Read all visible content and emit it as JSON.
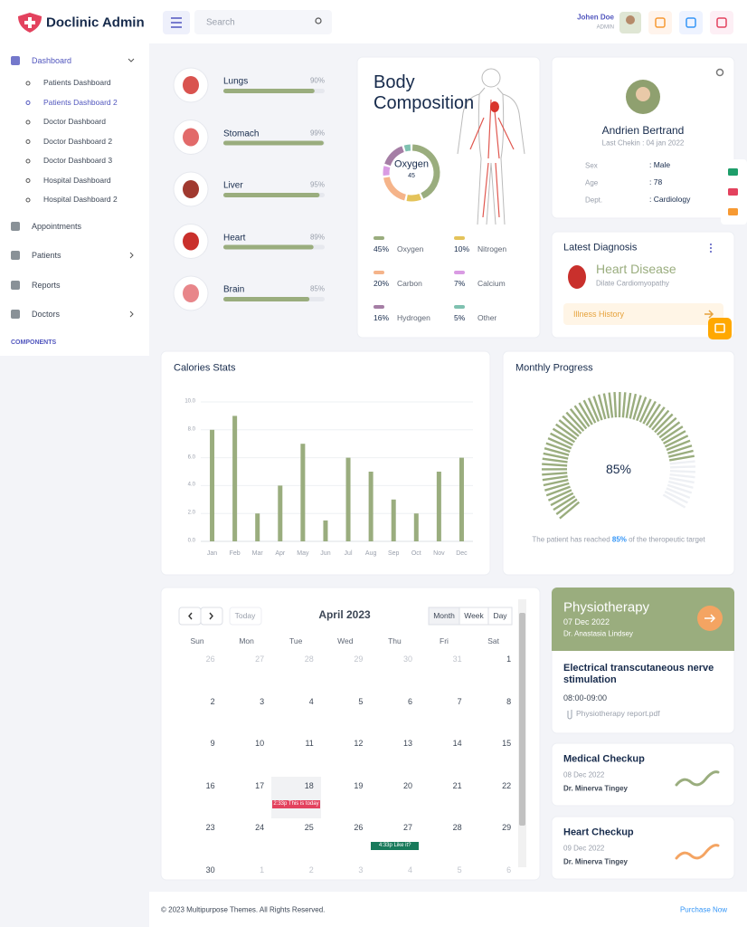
{
  "header": {
    "brand": "Doclinic Admin",
    "search_placeholder": "Search",
    "user_name": "Johen Doe",
    "user_role": "ADMIN"
  },
  "sidebar": {
    "items": [
      {
        "label": "Dashboard",
        "children": [
          "Patients Dashboard",
          "Patients Dashboard 2",
          "Doctor Dashboard",
          "Doctor Dashboard 2",
          "Doctor Dashboard 3",
          "Hospital Dashboard",
          "Hospital Dashboard 2"
        ]
      },
      {
        "label": "Appointments"
      },
      {
        "label": "Patients"
      },
      {
        "label": "Reports"
      },
      {
        "label": "Doctors"
      }
    ],
    "section": "COMPONENTS"
  },
  "organs": [
    {
      "name": "Lungs",
      "value": 90,
      "label": "90%"
    },
    {
      "name": "Stomach",
      "value": 99,
      "label": "99%"
    },
    {
      "name": "Liver",
      "value": 95,
      "label": "95%"
    },
    {
      "name": "Heart",
      "value": 89,
      "label": "89%"
    },
    {
      "name": "Brain",
      "value": 85,
      "label": "85%"
    }
  ],
  "body_composition": {
    "title": "Body Composition",
    "center_label": "Oxygen",
    "center_value": 45,
    "items": [
      {
        "name": "Oxygen",
        "value": 45,
        "label": "45%",
        "color": "#9aad7e"
      },
      {
        "name": "Nitrogen",
        "value": 10,
        "label": "10%",
        "color": "#e4c35a"
      },
      {
        "name": "Carbon",
        "value": 20,
        "label": "20%",
        "color": "#f5b48a"
      },
      {
        "name": "Calcium",
        "value": 7,
        "label": "7%",
        "color": "#d99be3"
      },
      {
        "name": "Hydrogen",
        "value": 16,
        "label": "16%",
        "color": "#a57ea5"
      },
      {
        "name": "Other",
        "value": 5,
        "label": "5%",
        "color": "#7fc1b0"
      }
    ]
  },
  "patient": {
    "name": "Andrien Bertrand",
    "last_checkin": "Last Chekin : 04 jan 2022",
    "fields": [
      {
        "label": "Sex",
        "value": ": Male"
      },
      {
        "label": "Age",
        "value": ": 78"
      },
      {
        "label": "Dept.",
        "value": ": Cardiology"
      }
    ]
  },
  "diagnosis": {
    "title": "Latest Diagnosis",
    "disease": "Heart Disease",
    "detail": "Dilate Cardiomyopathy",
    "button": "Illness History"
  },
  "chart_data": {
    "type": "bar",
    "title": "Calories Stats",
    "categories": [
      "Jan",
      "Feb",
      "Mar",
      "Apr",
      "May",
      "Jun",
      "Jul",
      "Aug",
      "Sep",
      "Oct",
      "Nov",
      "Dec"
    ],
    "values": [
      8,
      9,
      2,
      4,
      7,
      1.5,
      6,
      5,
      3,
      2,
      5,
      6
    ],
    "color": "#9aad7e",
    "ylim": [
      0,
      10
    ],
    "yticks": [
      {
        "value": 0,
        "label": "0.0"
      },
      {
        "value": 2,
        "label": "2.0"
      },
      {
        "value": 4,
        "label": "4.0"
      },
      {
        "value": 6,
        "label": "6.0"
      },
      {
        "value": 8,
        "label": "8.0"
      },
      {
        "value": 10,
        "label": "10.0"
      }
    ],
    "grid": true
  },
  "progress": {
    "title": "Monthly Progress",
    "value": 85,
    "label": "85%",
    "note_before": "The patient has reached ",
    "note_after": " of the theropeutic target"
  },
  "calendar": {
    "title": "April 2023",
    "today": "Today",
    "views": [
      "Month",
      "Week",
      "Day"
    ],
    "weekdays": [
      "Sun",
      "Mon",
      "Tue",
      "Wed",
      "Thu",
      "Fri",
      "Sat"
    ],
    "weeks": [
      [
        26,
        27,
        28,
        29,
        30,
        31,
        1
      ],
      [
        2,
        3,
        4,
        5,
        6,
        7,
        8
      ],
      [
        9,
        10,
        11,
        12,
        13,
        14,
        15
      ],
      [
        16,
        17,
        18,
        19,
        20,
        21,
        22
      ],
      [
        23,
        24,
        25,
        26,
        27,
        28,
        29
      ],
      [
        30,
        1,
        2,
        3,
        4,
        5,
        6
      ]
    ],
    "today_date": 18,
    "events": [
      {
        "date": 18,
        "text": "2:33p This is today",
        "color": "#e3425e"
      },
      {
        "date": 27,
        "text": "4:33p Like it?",
        "color": "#187a5b"
      }
    ]
  },
  "appointments": [
    {
      "title": "Physiotherapy",
      "date": "07 Dec 2022",
      "doctor": "Dr. Anastasia Lindsey",
      "detail": "Electrical transcutaneous nerve stimulation",
      "time": "08:00-09:00",
      "file": "Physiotherapy report.pdf"
    },
    {
      "title": "Medical Checkup",
      "date": "08 Dec 2022",
      "doctor": "Dr. Minerva Tingey"
    },
    {
      "title": "Heart Checkup",
      "date": "09 Dec 2022",
      "doctor": "Dr. Minerva Tingey"
    }
  ],
  "footer": {
    "copyright": "© 2023 Multipurpose Themes. All Rights Reserved.",
    "link": "Purchase Now"
  }
}
